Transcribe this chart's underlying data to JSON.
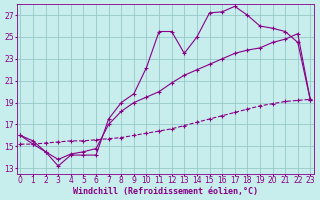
{
  "bg_color": "#c8eded",
  "grid_color": "#96c8c8",
  "line_color": "#880088",
  "xlim": [
    -0.3,
    23.3
  ],
  "ylim": [
    12.5,
    28.0
  ],
  "yticks": [
    13,
    15,
    17,
    19,
    21,
    23,
    25,
    27
  ],
  "xticks": [
    0,
    1,
    2,
    3,
    4,
    5,
    6,
    7,
    8,
    9,
    10,
    11,
    12,
    13,
    14,
    15,
    16,
    17,
    18,
    19,
    20,
    21,
    22,
    23
  ],
  "line1_x": [
    0,
    1,
    2,
    3,
    4,
    5,
    6,
    7,
    8,
    9,
    10,
    11,
    12,
    13,
    14,
    15,
    16,
    17,
    18,
    19,
    20,
    21,
    22,
    23
  ],
  "line1_y": [
    16.0,
    15.2,
    14.5,
    13.2,
    14.2,
    14.2,
    14.2,
    17.5,
    19.0,
    19.8,
    22.2,
    25.5,
    25.5,
    23.5,
    25.0,
    27.2,
    27.3,
    27.8,
    27.0,
    26.0,
    25.8,
    25.5,
    24.5,
    19.2
  ],
  "line2_x": [
    0,
    1,
    2,
    3,
    4,
    5,
    6,
    7,
    8,
    9,
    10,
    11,
    12,
    13,
    14,
    15,
    16,
    17,
    18,
    19,
    20,
    21,
    22,
    23
  ],
  "line2_y": [
    16.0,
    15.5,
    14.5,
    13.8,
    14.3,
    14.5,
    14.8,
    17.0,
    18.2,
    19.0,
    19.5,
    20.0,
    20.8,
    21.5,
    22.0,
    22.5,
    23.0,
    23.5,
    23.8,
    24.0,
    24.5,
    24.8,
    25.3,
    19.2
  ],
  "line3_x": [
    0,
    1,
    2,
    3,
    4,
    5,
    6,
    7,
    8,
    9,
    10,
    11,
    12,
    13,
    14,
    15,
    16,
    17,
    18,
    19,
    20,
    21,
    22,
    23
  ],
  "line3_y": [
    15.2,
    15.2,
    15.3,
    15.4,
    15.5,
    15.5,
    15.6,
    15.7,
    15.8,
    16.0,
    16.2,
    16.4,
    16.6,
    16.9,
    17.2,
    17.5,
    17.8,
    18.1,
    18.4,
    18.7,
    18.9,
    19.1,
    19.2,
    19.3
  ],
  "xlabel": "Windchill (Refroidissement éolien,°C)",
  "xlabel_fontsize": 6.0,
  "tick_fontsize": 5.5
}
